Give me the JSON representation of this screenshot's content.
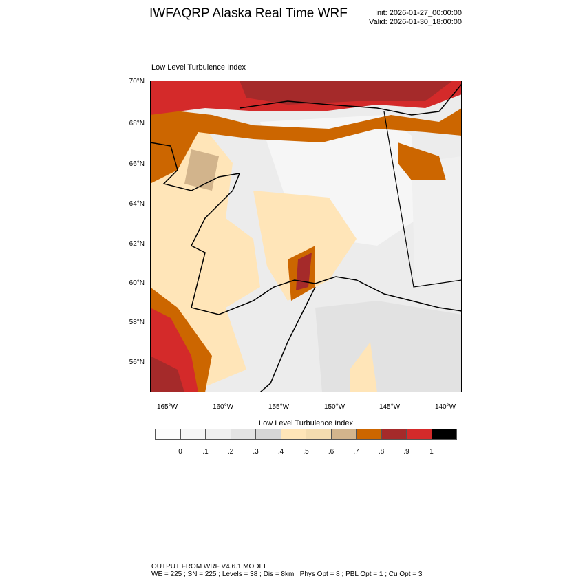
{
  "header": {
    "title": "IWFAQRP Alaska Real Time WRF",
    "init": "Init: 2026-01-27_00:00:00",
    "valid": "Valid: 2026-01-30_18:00:00"
  },
  "map": {
    "subtitle": "Low Level Turbulence Index",
    "lat_labels": [
      "70°N",
      "68°N",
      "66°N",
      "64°N",
      "62°N",
      "60°N",
      "58°N",
      "56°N"
    ],
    "lon_labels": [
      "165°W",
      "160°W",
      "155°W",
      "150°W",
      "145°W",
      "140°W"
    ]
  },
  "colorbar": {
    "title": "Low Level Turbulence Index",
    "labels": [
      "0",
      ".1",
      ".2",
      ".3",
      ".4",
      ".5",
      ".6",
      ".7",
      ".8",
      ".9",
      "1"
    ],
    "colors": [
      "#fcfcfc",
      "#f6f6f6",
      "#efefef",
      "#e3e3e3",
      "#d6d6d6",
      "#ffe5b8",
      "#f4dcb0",
      "#d2b48c",
      "#cc6600",
      "#a52a2a",
      "#d42a2a",
      "#000000"
    ]
  },
  "footer": {
    "line1": "OUTPUT FROM WRF V4.6.1 MODEL",
    "line2": "WE = 225 ; SN = 225 ; Levels = 38 ; Dis = 8km ; Phys Opt = 8 ; PBL Opt = 1 ; Cu Opt = 3"
  }
}
